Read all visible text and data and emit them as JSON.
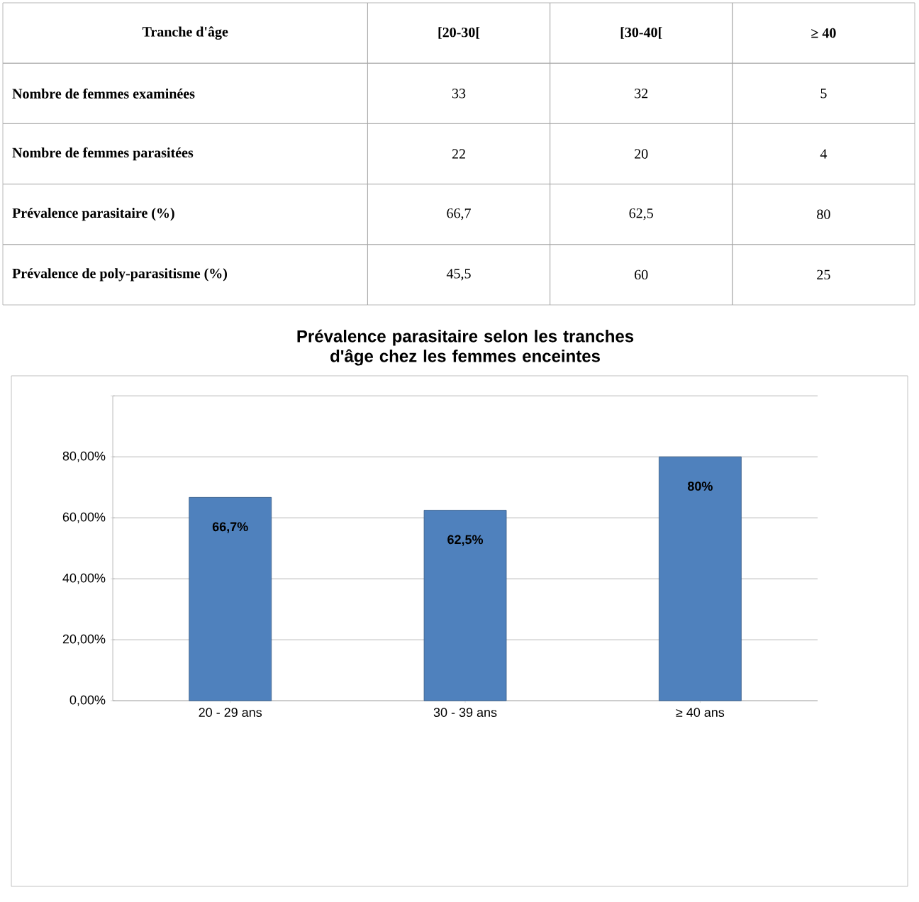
{
  "chart_data": [
    {
      "type": "other",
      "annotations": [
        "Tranche d'âge",
        "[20-30[",
        "[30-40[",
        "≥ 40",
        "Nombre de femmes examinées",
        "33",
        "32",
        "5",
        "Nombre de femmes parasitées",
        "22",
        "20",
        "4",
        "Prévalence parasitaire (%)",
        "66,7",
        "62,5",
        "80",
        "Prévalence de poly-parasitisme (%)",
        "45,5",
        "60",
        "25"
      ]
    },
    {
      "type": "bar",
      "title": "Prévalence parasitaire selon les tranches d'âge  chez les femmes enceintes",
      "categories": [
        "20 - 29 ans",
        "30 - 39 ans",
        "≥ 40 ans"
      ],
      "values": [
        66.7,
        62.5,
        80
      ],
      "color": "#4f81bd",
      "value_labels": [
        "66,7%",
        "62,5%",
        "80%"
      ],
      "ylim": [
        0,
        100
      ],
      "yticks": [
        {
          "value": 0,
          "label": "0,00%"
        },
        {
          "value": 20,
          "label": "20,00%"
        },
        {
          "value": 40,
          "label": "40,00%"
        },
        {
          "value": 60,
          "label": "60,00%"
        },
        {
          "value": 80,
          "label": "80,00%"
        },
        {
          "value": 100,
          "label": null
        }
      ],
      "grid": true
    }
  ]
}
